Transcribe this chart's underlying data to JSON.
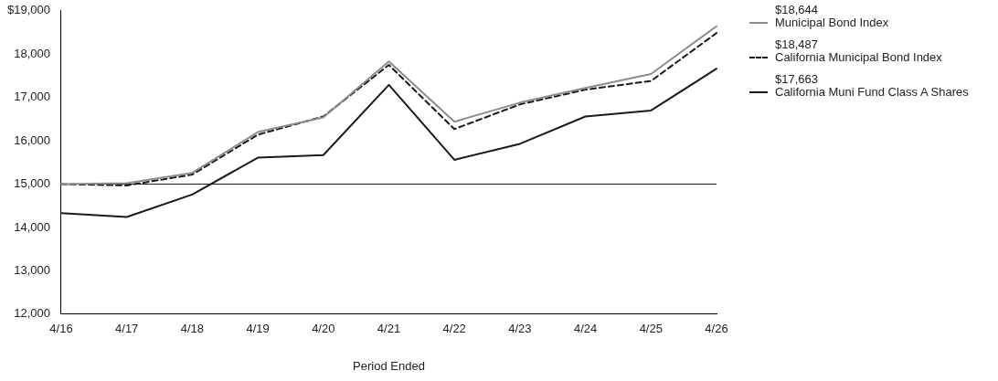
{
  "chart_data": {
    "type": "line",
    "xlabel": "Period Ended",
    "categories": [
      "4/16",
      "4/17",
      "4/18",
      "4/19",
      "4/20",
      "4/21",
      "4/22",
      "4/23",
      "4/24",
      "4/25",
      "4/26"
    ],
    "series": [
      {
        "name": "Municipal Bond Index",
        "color": "#8c8c8c",
        "line_style": "solid",
        "values": [
          15000,
          15020,
          15260,
          16200,
          16540,
          17830,
          16440,
          16880,
          17220,
          17540,
          18644
        ]
      },
      {
        "name": "California Municipal Bond Index",
        "color": "#1a1a1a",
        "line_style": "dashed",
        "values": [
          15000,
          14970,
          15220,
          16140,
          16560,
          17750,
          16270,
          16840,
          17180,
          17380,
          18487
        ]
      },
      {
        "name": "California Muni Fund Class A Shares",
        "color": "#1a1a1a",
        "line_style": "solid",
        "values": [
          14330,
          14240,
          14760,
          15610,
          15670,
          17290,
          15560,
          15930,
          16560,
          16700,
          17663
        ]
      }
    ],
    "annotations": [
      "$18,644",
      "$18,487",
      "$17,663"
    ],
    "ylim": [
      12000,
      19000
    ],
    "yticks": [
      {
        "value": 12000,
        "label": "12,000"
      },
      {
        "value": 13000,
        "label": "13,000"
      },
      {
        "value": 14000,
        "label": "14,000"
      },
      {
        "value": 15000,
        "label": "15,000"
      },
      {
        "value": 16000,
        "label": "16,000"
      },
      {
        "value": 17000,
        "label": "17,000"
      },
      {
        "value": 18000,
        "label": "18,000"
      },
      {
        "value": 19000,
        "label": "$19,000"
      }
    ],
    "ref_lines": [
      {
        "axis": "y",
        "value": 15000,
        "color": "#1a1a1a"
      }
    ],
    "grid": false,
    "legend": "right",
    "marker": "none"
  }
}
